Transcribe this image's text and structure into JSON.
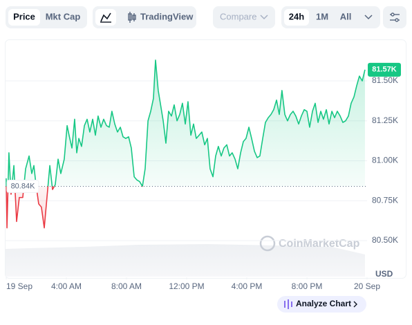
{
  "toolbar": {
    "price": "Price",
    "mkt_cap": "Mkt Cap",
    "tradingview": "TradingView",
    "compare": "Compare",
    "ranges": [
      "24h",
      "1M",
      "All"
    ]
  },
  "chart_data": {
    "type": "line",
    "x": [
      0.0,
      0.05,
      0.18,
      0.32,
      0.51,
      0.69,
      0.87,
      1.1,
      1.29,
      1.52,
      1.7,
      1.84,
      1.98,
      2.16,
      2.34,
      2.53,
      2.71,
      2.9,
      3.08,
      3.26,
      3.45,
      3.63,
      3.86,
      4.05,
      4.18,
      4.37,
      4.55,
      4.69,
      4.83,
      5.01,
      5.2,
      5.38,
      5.56,
      5.75,
      5.93,
      6.11,
      6.3,
      6.48,
      6.67,
      6.85,
      7.03,
      7.22,
      7.4,
      7.59,
      7.77,
      7.95,
      8.14,
      8.32,
      8.51,
      8.69,
      8.87,
      9.06,
      9.24,
      9.43,
      9.61,
      9.79,
      9.93,
      10.11,
      10.25,
      10.44,
      10.62,
      10.8,
      10.99,
      11.17,
      11.36,
      11.54,
      11.72,
      11.91,
      12.09,
      12.28,
      12.46,
      12.64,
      12.83,
      13.01,
      13.2,
      13.38,
      13.56,
      13.75,
      13.93,
      14.11,
      14.3,
      14.48,
      14.67,
      14.85,
      15.03,
      15.22,
      15.4,
      15.59,
      15.77,
      15.95,
      16.14,
      16.32,
      16.51,
      16.69,
      16.87,
      17.06,
      17.24,
      17.43,
      17.61,
      17.79,
      17.98,
      18.16,
      18.34,
      18.53,
      18.71,
      18.9,
      19.08,
      19.26,
      19.45,
      19.63,
      19.82,
      20.0,
      20.18,
      20.37,
      20.55,
      20.74,
      20.92,
      21.1,
      21.29,
      21.47,
      21.66,
      21.84,
      22.02,
      22.21,
      22.39,
      22.57,
      22.76,
      22.94,
      23.13,
      23.31,
      23.49,
      23.68,
      23.86
    ],
    "values": [
      80.89,
      80.58,
      81.05,
      80.79,
      80.97,
      80.62,
      80.77,
      80.77,
      80.95,
      81.03,
      80.92,
      80.97,
      80.85,
      80.73,
      80.71,
      80.58,
      80.77,
      80.97,
      80.82,
      80.85,
      81.01,
      80.92,
      81.01,
      81.22,
      81.16,
      81.08,
      81.26,
      81.05,
      81.14,
      81.09,
      81.22,
      81.26,
      81.18,
      81.26,
      81.16,
      81.28,
      81.21,
      81.26,
      81.22,
      81.21,
      81.31,
      81.23,
      81.18,
      81.21,
      81.15,
      81.14,
      81.15,
      81.08,
      80.9,
      80.88,
      80.87,
      80.84,
      80.95,
      81.25,
      81.31,
      81.39,
      81.63,
      81.44,
      81.36,
      81.25,
      81.11,
      81.31,
      81.28,
      81.35,
      81.25,
      81.29,
      81.36,
      81.23,
      81.37,
      81.16,
      81.23,
      81.14,
      81.16,
      81.18,
      81.1,
      81.14,
      80.95,
      80.9,
      81.03,
      81.09,
      81.03,
      81.08,
      81.1,
      81.03,
      81.05,
      81.01,
      80.95,
      81.05,
      81.12,
      81.14,
      81.21,
      81.14,
      81.06,
      81.02,
      81.03,
      81.14,
      81.24,
      81.27,
      81.29,
      81.32,
      81.38,
      81.29,
      81.44,
      81.29,
      81.25,
      81.29,
      81.31,
      81.28,
      81.23,
      81.28,
      81.32,
      81.31,
      81.21,
      81.31,
      81.36,
      81.24,
      81.31,
      81.26,
      81.32,
      81.23,
      81.31,
      81.27,
      81.31,
      81.28,
      81.24,
      81.25,
      81.28,
      81.36,
      81.4,
      81.47,
      81.53,
      81.5,
      81.57
    ],
    "color_up": "#16c784",
    "color_down": "#ea3943",
    "reference_line": {
      "value": 80.84,
      "label": "80.84K"
    },
    "current_price": {
      "value": 81.57,
      "label": "81.57K"
    },
    "xlim": [
      0,
      24
    ],
    "xticks": [
      {
        "value": 0,
        "label": "19 Sep"
      },
      {
        "value": 4,
        "label": "4:00 AM"
      },
      {
        "value": 8,
        "label": "8:00 AM"
      },
      {
        "value": 12,
        "label": "12:00 PM"
      },
      {
        "value": 16,
        "label": "4:00 PM"
      },
      {
        "value": 20,
        "label": "8:00 PM"
      },
      {
        "value": 24,
        "label": "20 Sep"
      }
    ],
    "ylim": [
      80.27,
      81.75
    ],
    "yticks": [
      {
        "value": 80.5,
        "label": "80.50K"
      },
      {
        "value": 80.75,
        "label": "80.75K"
      },
      {
        "value": 81.0,
        "label": "81.00K"
      },
      {
        "value": 81.25,
        "label": "81.25K"
      },
      {
        "value": 81.5,
        "label": "81.50K"
      }
    ],
    "y_unit": "USD",
    "grid": true,
    "watermark": "CoinMarketCap"
  },
  "analyze_button": "Analyze Chart"
}
